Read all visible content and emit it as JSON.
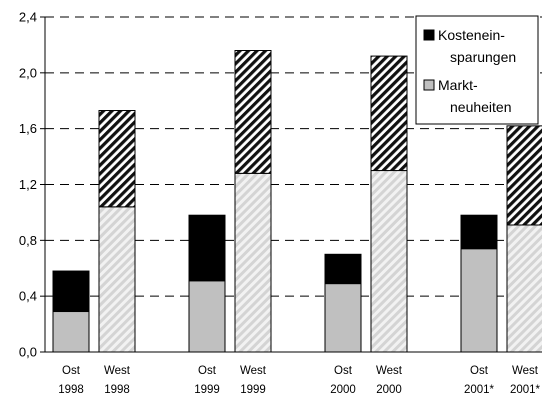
{
  "chart_data": {
    "type": "bar",
    "stacked": true,
    "categories": [
      [
        "Ost",
        "1998"
      ],
      [
        "West",
        "1998"
      ],
      [
        "Ost",
        "1999"
      ],
      [
        "West",
        "1999"
      ],
      [
        "Ost",
        "2000"
      ],
      [
        "West",
        "2000"
      ],
      [
        "Ost",
        "2001*"
      ],
      [
        "West",
        "2001*"
      ]
    ],
    "groups": [
      [
        0,
        1
      ],
      [
        2,
        3
      ],
      [
        4,
        5
      ],
      [
        6,
        7
      ]
    ],
    "series": [
      {
        "name": "Marktneuheiten",
        "legend_lines": [
          "Markt-",
          "neuheiten"
        ],
        "values": [
          0.29,
          1.04,
          0.51,
          1.28,
          0.49,
          1.3,
          0.74,
          0.91
        ],
        "color_ost": "#c0c0c0",
        "pattern_west": "light-diagonal"
      },
      {
        "name": "Kosteneinsparungen",
        "legend_lines": [
          "Kostenein-",
          "sparungen"
        ],
        "values": [
          0.29,
          0.69,
          0.47,
          0.88,
          0.21,
          0.82,
          0.24,
          0.71
        ],
        "color_ost": "#000000",
        "pattern_west": "dark-diagonal"
      }
    ],
    "y_ticks": [
      "0,0",
      "0,4",
      "0,8",
      "1,2",
      "1,6",
      "2,0",
      "2,4"
    ],
    "ylim": [
      0,
      2.4
    ],
    "grid": "dashed-horizontal",
    "legend_position": "top-right",
    "title": "",
    "xlabel": "",
    "ylabel": ""
  }
}
